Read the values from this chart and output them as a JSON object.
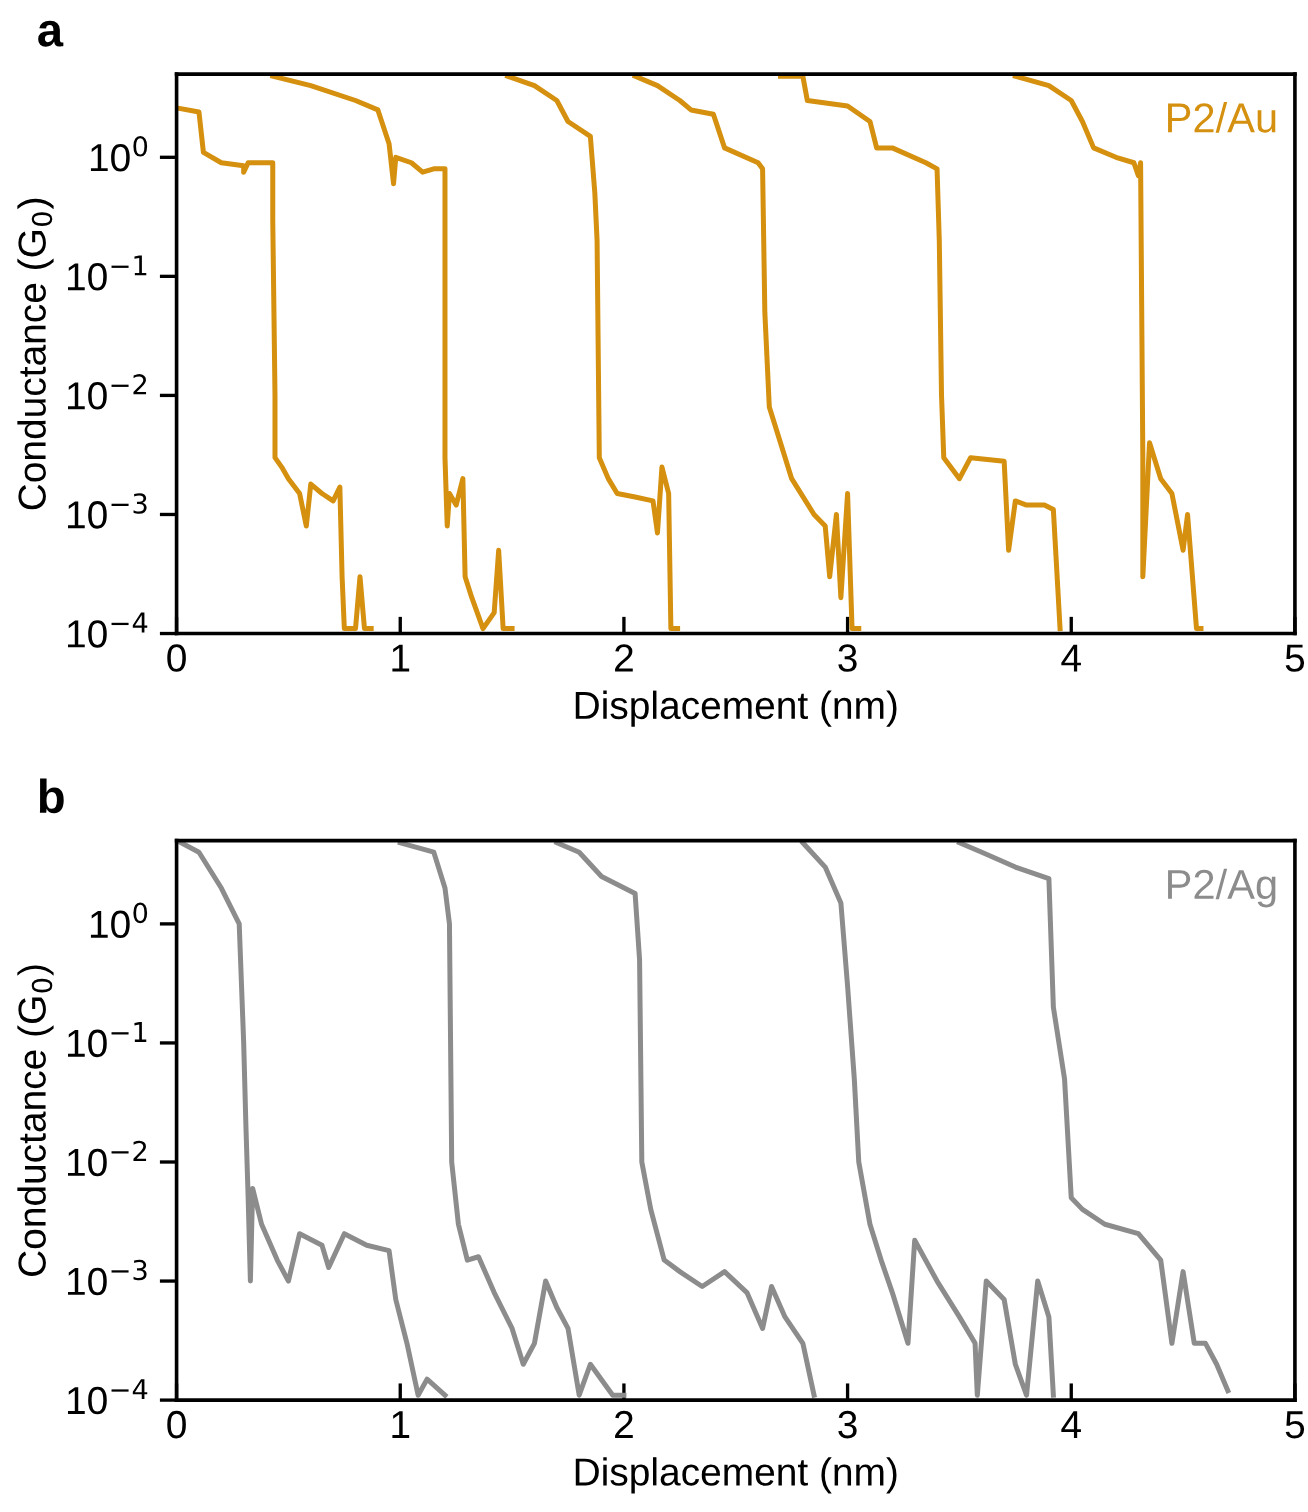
{
  "chart_data": [
    {
      "type": "line",
      "title": "a",
      "xlabel": "Displacement (nm)",
      "ylabel": "Conductance (G$_{0}$)",
      "log": "y",
      "xlim": [
        0,
        5
      ],
      "ylim": [
        0.0001,
        5
      ],
      "xticks": [
        0,
        1,
        2,
        3,
        4,
        5
      ],
      "yticks": [
        {
          "value": 0.0001,
          "label": "10$^{−4}$"
        },
        {
          "value": 0.001,
          "label": "10$^{−3}$"
        },
        {
          "value": 0.01,
          "label": "10$^{−2}$"
        },
        {
          "value": 0.1,
          "label": "10$^{−1}$"
        },
        {
          "value": 1,
          "label": "10$^{0}$"
        }
      ],
      "grid": false,
      "legend": false,
      "line_style": "solid",
      "marker": "none",
      "series": [
        {
          "name": "P2/Au",
          "color": "#d4900e",
          "x": [
            0,
            0.1,
            0.12,
            0.2,
            0.3,
            0.3,
            0.32,
            0.43,
            0.43,
            0.44,
            0.44,
            0.47,
            0.5,
            0.55,
            0.58,
            0.6,
            0.65,
            0.7,
            0.73,
            0.74,
            0.75,
            0.8,
            0.82,
            0.84,
            0.87
          ],
          "values": [
            2.6,
            2.4,
            1.1,
            0.9,
            0.85,
            0.75,
            0.9,
            0.9,
            0.3,
            0.01,
            0.003,
            0.0025,
            0.002,
            0.0015,
            0.0008,
            0.0018,
            0.0015,
            0.0013,
            0.0017,
            0.0003,
            0.00011,
            0.00011,
            0.0003,
            0.00011,
            0.00011
          ]
        },
        {
          "color": "#d4900e",
          "x": [
            0.43,
            0.6,
            0.8,
            0.9,
            0.95,
            0.97,
            0.98,
            1.05,
            1.1,
            1.15,
            1.2,
            1.2,
            1.21,
            1.22,
            1.25,
            1.28,
            1.29,
            1.32,
            1.37,
            1.42,
            1.44,
            1.46,
            1.5
          ],
          "values": [
            4.8,
            4,
            3,
            2.5,
            1.3,
            0.6,
            1.0,
            0.9,
            0.75,
            0.8,
            0.8,
            0.003,
            0.0008,
            0.0015,
            0.0012,
            0.002,
            0.0003,
            0.0002,
            0.00011,
            0.00015,
            0.0005,
            0.00011,
            0.00011
          ]
        },
        {
          "color": "#d4900e",
          "x": [
            1.48,
            1.6,
            1.7,
            1.75,
            1.85,
            1.87,
            1.88,
            1.89,
            1.93,
            1.97,
            2.05,
            2.13,
            2.15,
            2.17,
            2.2,
            2.21,
            2.24
          ],
          "values": [
            4.8,
            4,
            3,
            2,
            1.5,
            0.5,
            0.2,
            0.003,
            0.002,
            0.0015,
            0.0014,
            0.0013,
            0.0007,
            0.0025,
            0.0015,
            0.00011,
            0.00011
          ]
        },
        {
          "color": "#d4900e",
          "x": [
            2.05,
            2.15,
            2.25,
            2.3,
            2.4,
            2.45,
            2.6,
            2.62,
            2.63,
            2.65,
            2.7,
            2.75,
            2.85,
            2.9,
            2.92,
            2.95,
            2.97,
            3.0,
            3.02,
            3.05
          ],
          "values": [
            4.8,
            4,
            3,
            2.5,
            2.3,
            1.2,
            0.9,
            0.8,
            0.05,
            0.008,
            0.004,
            0.002,
            0.001,
            0.0008,
            0.0003,
            0.001,
            0.0002,
            0.0015,
            0.00011,
            0.00011
          ]
        },
        {
          "color": "#d4900e",
          "x": [
            2.7,
            2.8,
            2.82,
            3.0,
            3.1,
            3.13,
            3.2,
            3.35,
            3.4,
            3.41,
            3.42,
            3.43,
            3.5,
            3.55,
            3.7,
            3.72,
            3.75,
            3.8,
            3.88,
            3.92,
            3.95
          ],
          "values": [
            4.8,
            4.8,
            3,
            2.7,
            2,
            1.2,
            1.2,
            0.9,
            0.8,
            0.2,
            0.01,
            0.003,
            0.002,
            0.003,
            0.0028,
            0.0005,
            0.0013,
            0.0012,
            0.0012,
            0.0011,
            0.00011
          ]
        },
        {
          "color": "#d4900e",
          "x": [
            3.75,
            3.9,
            4.0,
            4.05,
            4.1,
            4.2,
            4.28,
            4.3,
            4.31,
            4.32,
            4.32,
            4.35,
            4.4,
            4.45,
            4.5,
            4.52,
            4.56,
            4.58
          ],
          "values": [
            4.8,
            4,
            3,
            2,
            1.2,
            1.0,
            0.9,
            0.7,
            0.9,
            0.003,
            0.0003,
            0.004,
            0.002,
            0.0015,
            0.0005,
            0.001,
            0.00011,
            0.00011
          ]
        }
      ]
    },
    {
      "type": "line",
      "title": "b",
      "xlabel": "Displacement (nm)",
      "ylabel": "Conductance (G$_{0}$)",
      "log": "y",
      "xlim": [
        0,
        5
      ],
      "ylim": [
        0.0001,
        5
      ],
      "xticks": [
        0,
        1,
        2,
        3,
        4,
        5
      ],
      "yticks": [
        {
          "value": 0.0001,
          "label": "10$^{−4}$"
        },
        {
          "value": 0.001,
          "label": "10$^{−3}$"
        },
        {
          "value": 0.01,
          "label": "10$^{−2}$"
        },
        {
          "value": 0.1,
          "label": "10$^{−1}$"
        },
        {
          "value": 1,
          "label": "10$^{0}$"
        }
      ],
      "grid": false,
      "legend": false,
      "line_style": "solid",
      "marker": "none",
      "series": [
        {
          "name": "P2/Ag",
          "color": "#8c8c8c",
          "x": [
            0.02,
            0.1,
            0.2,
            0.28,
            0.3,
            0.31,
            0.32,
            0.33,
            0.34,
            0.38,
            0.45,
            0.5,
            0.55,
            0.65,
            0.68,
            0.75,
            0.85,
            0.95,
            0.98,
            1.03,
            1.08,
            1.12,
            1.2
          ],
          "values": [
            4.8,
            4,
            2,
            1,
            0.1,
            0.02,
            0.005,
            0.001,
            0.006,
            0.003,
            0.0015,
            0.001,
            0.0025,
            0.002,
            0.0013,
            0.0025,
            0.002,
            0.0018,
            0.0007,
            0.0003,
            0.00011,
            0.00015,
            0.00011
          ]
        },
        {
          "color": "#8c8c8c",
          "x": [
            1.0,
            1.15,
            1.2,
            1.22,
            1.23,
            1.26,
            1.3,
            1.35,
            1.42,
            1.5,
            1.55,
            1.6,
            1.65,
            1.7,
            1.75,
            1.8,
            1.85,
            1.95,
            2.0
          ],
          "values": [
            4.8,
            4,
            2,
            1,
            0.01,
            0.003,
            0.0015,
            0.0016,
            0.0008,
            0.0004,
            0.0002,
            0.0003,
            0.001,
            0.0006,
            0.0004,
            0.00011,
            0.0002,
            0.00011,
            0.00011
          ]
        },
        {
          "color": "#8c8c8c",
          "x": [
            1.7,
            1.8,
            1.9,
            2.05,
            2.07,
            2.08,
            2.12,
            2.18,
            2.25,
            2.35,
            2.45,
            2.55,
            2.62,
            2.66,
            2.72,
            2.8,
            2.85
          ],
          "values": [
            4.8,
            4,
            2.5,
            1.8,
            0.5,
            0.01,
            0.004,
            0.0015,
            0.0012,
            0.0009,
            0.0012,
            0.0008,
            0.0004,
            0.0009,
            0.0005,
            0.0003,
            0.00011
          ]
        },
        {
          "color": "#8c8c8c",
          "x": [
            2.8,
            2.9,
            2.97,
            3.0,
            3.03,
            3.05,
            3.1,
            3.15,
            3.2,
            3.27,
            3.3,
            3.4,
            3.5,
            3.57,
            3.58,
            3.62,
            3.7,
            3.75,
            3.8,
            3.85,
            3.9,
            3.92
          ],
          "values": [
            4.8,
            3,
            1.5,
            0.3,
            0.05,
            0.01,
            0.003,
            0.0015,
            0.0008,
            0.0003,
            0.0022,
            0.001,
            0.0005,
            0.0003,
            0.00011,
            0.001,
            0.0007,
            0.0002,
            0.00011,
            0.001,
            0.0005,
            0.00011
          ]
        },
        {
          "color": "#8c8c8c",
          "x": [
            3.5,
            3.6,
            3.75,
            3.9,
            3.92,
            3.97,
            4.0,
            4.05,
            4.15,
            4.3,
            4.4,
            4.45,
            4.5,
            4.55,
            4.6,
            4.65,
            4.7
          ],
          "values": [
            4.8,
            4,
            3,
            2.4,
            0.2,
            0.05,
            0.005,
            0.004,
            0.003,
            0.0025,
            0.0015,
            0.0003,
            0.0012,
            0.0003,
            0.0003,
            0.0002,
            0.00012
          ]
        }
      ]
    }
  ]
}
